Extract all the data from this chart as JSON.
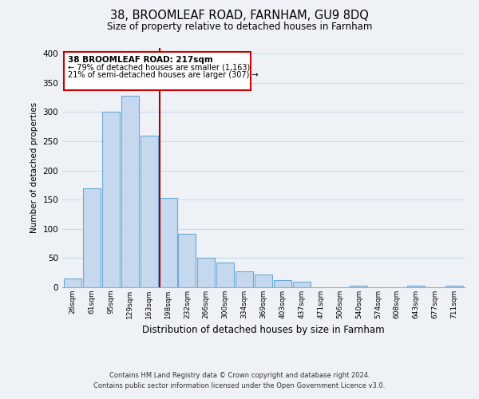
{
  "title": "38, BROOMLEAF ROAD, FARNHAM, GU9 8DQ",
  "subtitle": "Size of property relative to detached houses in Farnham",
  "xlabel": "Distribution of detached houses by size in Farnham",
  "ylabel": "Number of detached properties",
  "bar_labels": [
    "26sqm",
    "61sqm",
    "95sqm",
    "129sqm",
    "163sqm",
    "198sqm",
    "232sqm",
    "266sqm",
    "300sqm",
    "334sqm",
    "369sqm",
    "403sqm",
    "437sqm",
    "471sqm",
    "506sqm",
    "540sqm",
    "574sqm",
    "608sqm",
    "643sqm",
    "677sqm",
    "711sqm"
  ],
  "bar_values": [
    15,
    170,
    300,
    328,
    260,
    153,
    92,
    50,
    42,
    27,
    22,
    12,
    10,
    0,
    0,
    3,
    0,
    0,
    3,
    0,
    3
  ],
  "bar_color": "#c5d8ed",
  "bar_edge_color": "#6aaad4",
  "grid_color": "#c8d8e8",
  "background_color": "#eef2f7",
  "property_line_color": "#aa0000",
  "annotation_line1": "38 BROOMLEAF ROAD: 217sqm",
  "annotation_line2": "← 79% of detached houses are smaller (1,163)",
  "annotation_line3": "21% of semi-detached houses are larger (307) →",
  "footnote1": "Contains HM Land Registry data © Crown copyright and database right 2024.",
  "footnote2": "Contains public sector information licensed under the Open Government Licence v3.0.",
  "ylim": [
    0,
    410
  ],
  "yticks": [
    0,
    50,
    100,
    150,
    200,
    250,
    300,
    350,
    400
  ]
}
